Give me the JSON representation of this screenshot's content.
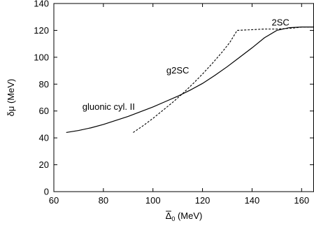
{
  "chart_data": {
    "type": "line",
    "title": "",
    "xlabel_symbol": "Δ",
    "xlabel_subscript": "0",
    "xlabel_unit": " (MeV)",
    "ylabel": "δμ (MeV)",
    "xlim": [
      60,
      165
    ],
    "ylim": [
      0,
      140
    ],
    "xticks": [
      60,
      80,
      100,
      120,
      140,
      160
    ],
    "yticks": [
      0,
      20,
      40,
      60,
      80,
      100,
      120,
      140
    ],
    "grid": false,
    "legend": "none",
    "series": [
      {
        "label": "gluonic cyl. II",
        "style": "solid",
        "color": "#000000",
        "x": [
          65,
          70,
          75,
          80,
          85,
          90,
          95,
          100,
          105,
          110,
          115,
          120,
          125,
          130,
          135,
          140,
          145,
          150,
          155,
          160,
          165
        ],
        "y": [
          44,
          45.5,
          47.5,
          50,
          53,
          56,
          59.5,
          63,
          67,
          71,
          75.5,
          80.5,
          86.5,
          93,
          100,
          107,
          114.5,
          120,
          122,
          122.5,
          122.5
        ]
      },
      {
        "label": "g2SC",
        "style": "dashed",
        "color": "#000000",
        "x": [
          92,
          96,
          100,
          104,
          108,
          112,
          116,
          120,
          124,
          128,
          131,
          133,
          134
        ],
        "y": [
          44,
          49,
          54.5,
          60.5,
          66.5,
          73,
          80,
          87.5,
          95.5,
          104,
          111,
          117,
          120
        ]
      },
      {
        "label": "2SC",
        "style": "dashed",
        "color": "#000000",
        "x": [
          134,
          140,
          145,
          150,
          155,
          158,
          160,
          165
        ],
        "y": [
          120,
          120.5,
          121,
          121,
          121.5,
          122,
          122.5,
          122.5
        ]
      }
    ],
    "annotations": [
      {
        "text": "gluonic cyl. II",
        "x": 71.5,
        "y": 61,
        "anchor": "start"
      },
      {
        "text": "g2SC",
        "x": 110,
        "y": 88,
        "anchor": "middle"
      },
      {
        "text": "2SC",
        "x": 151.5,
        "y": 123.5,
        "anchor": "middle"
      }
    ]
  }
}
